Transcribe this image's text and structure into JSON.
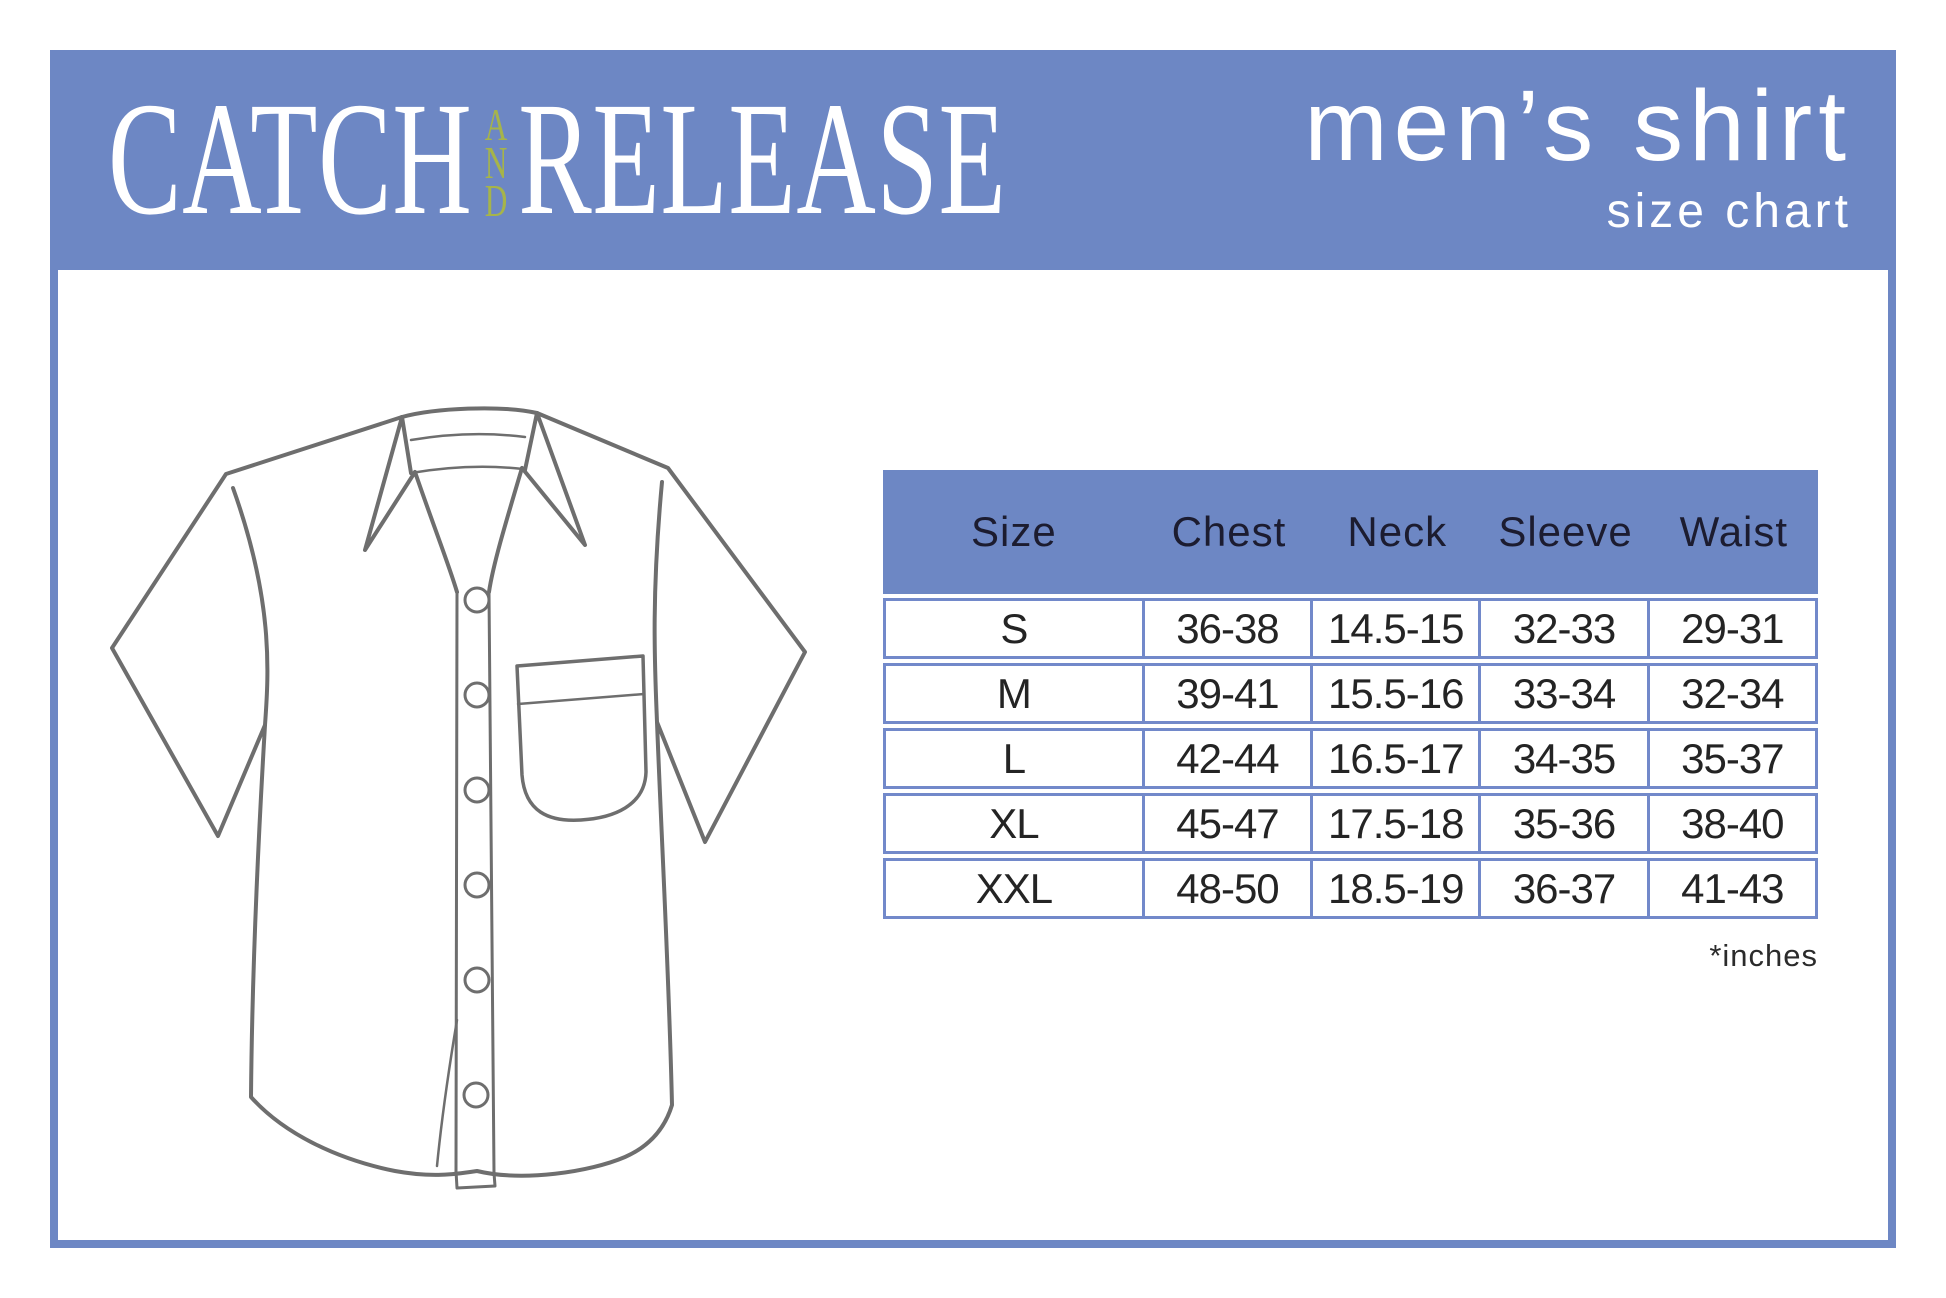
{
  "brand": {
    "word1": "CATCH",
    "and": [
      "A",
      "N",
      "D"
    ],
    "word2": "RELEASE"
  },
  "header": {
    "title": "men’s shirt",
    "subtitle": "size chart"
  },
  "size_table": {
    "columns": [
      "Size",
      "Chest",
      "Neck",
      "Sleeve",
      "Waist"
    ],
    "rows": [
      [
        "S",
        "36-38",
        "14.5-15",
        "32-33",
        "29-31"
      ],
      [
        "M",
        "39-41",
        "15.5-16",
        "33-34",
        "32-34"
      ],
      [
        "L",
        "42-44",
        "16.5-17",
        "34-35",
        "35-37"
      ],
      [
        "XL",
        "45-47",
        "17.5-18",
        "35-36",
        "38-40"
      ],
      [
        "XXL",
        "48-50",
        "18.5-19",
        "36-37",
        "41-43"
      ]
    ],
    "note": "*inches"
  },
  "illustration": {
    "name": "mens-short-sleeve-button-up-shirt"
  },
  "colors": {
    "banner_blue": "#6d87c4",
    "border_blue": "#7289ca",
    "accent_olive": "#a6b44a",
    "header_text": "#1c1c30",
    "data_text": "#242424",
    "shirt_outline": "#6e6e6e",
    "title_white": "#ffffff"
  }
}
